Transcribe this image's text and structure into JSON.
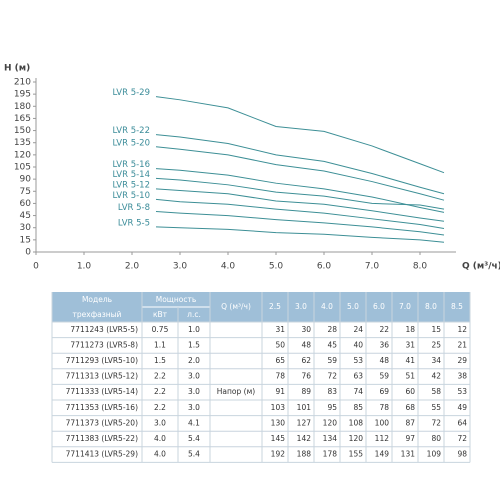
{
  "chart_data": {
    "type": "line",
    "y_label": "H (м)",
    "x_label": "Q (м³/ч)",
    "x": [
      2.5,
      3,
      4,
      5,
      6,
      7,
      8,
      8.5
    ],
    "xlim": [
      0,
      8.75
    ],
    "xticks": [
      0,
      {
        "value": 1,
        "label": "1.0"
      },
      {
        "value": 2,
        "label": "2.0"
      },
      {
        "value": 3,
        "label": "3.0"
      },
      {
        "value": 4,
        "label": "4.0"
      },
      {
        "value": 5,
        "label": "5.0"
      },
      {
        "value": 6,
        "label": "6.0"
      },
      {
        "value": 7,
        "label": "7.0"
      },
      {
        "value": 8,
        "label": "8.0"
      }
    ],
    "ylim": [
      0,
      210
    ],
    "yticks": [
      0,
      15,
      30,
      45,
      60,
      75,
      90,
      105,
      120,
      135,
      150,
      165,
      180,
      195,
      210
    ],
    "series": [
      {
        "name": "LVR 5-5",
        "color": "#3d8f96",
        "values": [
          31,
          30,
          28,
          24,
          22,
          18,
          15,
          12
        ]
      },
      {
        "name": "LVR 5-8",
        "color": "#3d8f96",
        "values": [
          50,
          48,
          45,
          40,
          36,
          31,
          25,
          21
        ]
      },
      {
        "name": "LVR 5-10",
        "color": "#3d8f96",
        "values": [
          65,
          62,
          59,
          53,
          48,
          41,
          34,
          29
        ]
      },
      {
        "name": "LVR 5-12",
        "color": "#3d8f96",
        "values": [
          78,
          76,
          72,
          63,
          59,
          51,
          42,
          38
        ]
      },
      {
        "name": "LVR 5-14",
        "color": "#3d8f96",
        "values": [
          91,
          89,
          83,
          74,
          69,
          60,
          58,
          53
        ]
      },
      {
        "name": "LVR 5-16",
        "color": "#3d8f96",
        "values": [
          103,
          101,
          95,
          85,
          78,
          68,
          55,
          49
        ]
      },
      {
        "name": "LVR 5-20",
        "color": "#3d8f96",
        "values": [
          130,
          127,
          120,
          108,
          100,
          87,
          72,
          64
        ]
      },
      {
        "name": "LVR 5-22",
        "color": "#3d8f96",
        "values": [
          145,
          142,
          134,
          120,
          112,
          97,
          80,
          72
        ]
      },
      {
        "name": "LVR 5-29",
        "color": "#3d8f96",
        "values": [
          192,
          188,
          178,
          155,
          149,
          131,
          109,
          98
        ]
      }
    ]
  },
  "table": {
    "headers": {
      "model": "Модель",
      "model_sub": "трехфазный",
      "power": "Мощность",
      "kw": "кВт",
      "hp": "л.с.",
      "q": "Q (м³/ч)",
      "q_values": [
        "2.5",
        "3.0",
        "4.0",
        "5.0",
        "6.0",
        "7.0",
        "8.0",
        "8.5"
      ]
    },
    "head_label": "Напор (м)",
    "rows": [
      {
        "model": "7711243 (LVR5-5)",
        "kw": "0.75",
        "hp": "1.0"
      },
      {
        "model": "7711273 (LVR5-8)",
        "kw": "1.1",
        "hp": "1.5"
      },
      {
        "model": "7711293 (LVR5-10)",
        "kw": "1.5",
        "hp": "2.0"
      },
      {
        "model": "7711313 (LVR5-12)",
        "kw": "2.2",
        "hp": "3.0"
      },
      {
        "model": "7711333 (LVR5-14)",
        "kw": "2.2",
        "hp": "3.0"
      },
      {
        "model": "7711353 (LVR5-16)",
        "kw": "2.2",
        "hp": "3.0"
      },
      {
        "model": "7711373 (LVR5-20)",
        "kw": "3.0",
        "hp": "4.1"
      },
      {
        "model": "7711383 (LVR5-22)",
        "kw": "4.0",
        "hp": "5.4"
      },
      {
        "model": "7711413 (LVR5-29)",
        "kw": "4.0",
        "hp": "5.4"
      }
    ]
  }
}
